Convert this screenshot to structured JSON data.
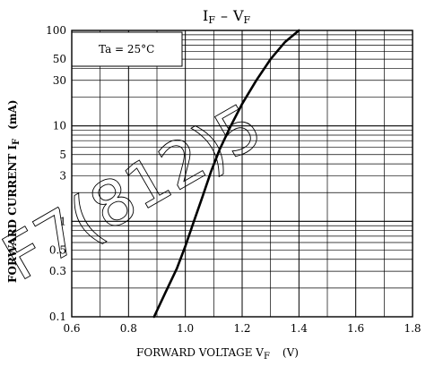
{
  "chart_data": {
    "type": "line",
    "title": {
      "main": "I",
      "main_sub": "F",
      "dash": "–",
      "tail": "V",
      "tail_sub": "F"
    },
    "xlabel": {
      "text": "FORWARD VOLTAGE  V",
      "sub": "F",
      "unit": "(V)"
    },
    "ylabel": {
      "text": "FORWARD CURRENT  I",
      "sub": "F",
      "unit": "(mA)"
    },
    "annotation": "Ta = 25°C",
    "xlim": [
      0.6,
      1.8
    ],
    "ylim": [
      0.1,
      100
    ],
    "yscale": "log",
    "grid": true,
    "x_ticks": [
      "0.6",
      "0.8",
      "1.0",
      "1.2",
      "1.4",
      "1.6",
      "1.8"
    ],
    "y_ticks": [
      {
        "value": 0.1,
        "label": "0.1"
      },
      {
        "value": 0.3,
        "label": "0.3"
      },
      {
        "value": 0.5,
        "label": "0.5"
      },
      {
        "value": 1,
        "label": "1"
      },
      {
        "value": 3,
        "label": "3"
      },
      {
        "value": 5,
        "label": "5"
      },
      {
        "value": 10,
        "label": "10"
      },
      {
        "value": 30,
        "label": "30"
      },
      {
        "value": 50,
        "label": "50"
      },
      {
        "value": 100,
        "label": "100"
      }
    ],
    "series": [
      {
        "x": [
          0.89,
          0.93,
          0.97,
          1.0,
          1.03,
          1.06,
          1.09,
          1.12,
          1.16,
          1.2,
          1.25,
          1.3,
          1.35,
          1.4
        ],
        "y": [
          0.1,
          0.18,
          0.32,
          0.55,
          1.0,
          1.8,
          3.3,
          5.6,
          10,
          17,
          30,
          50,
          75,
          100
        ]
      }
    ],
    "watermark": "F7(812)5"
  }
}
